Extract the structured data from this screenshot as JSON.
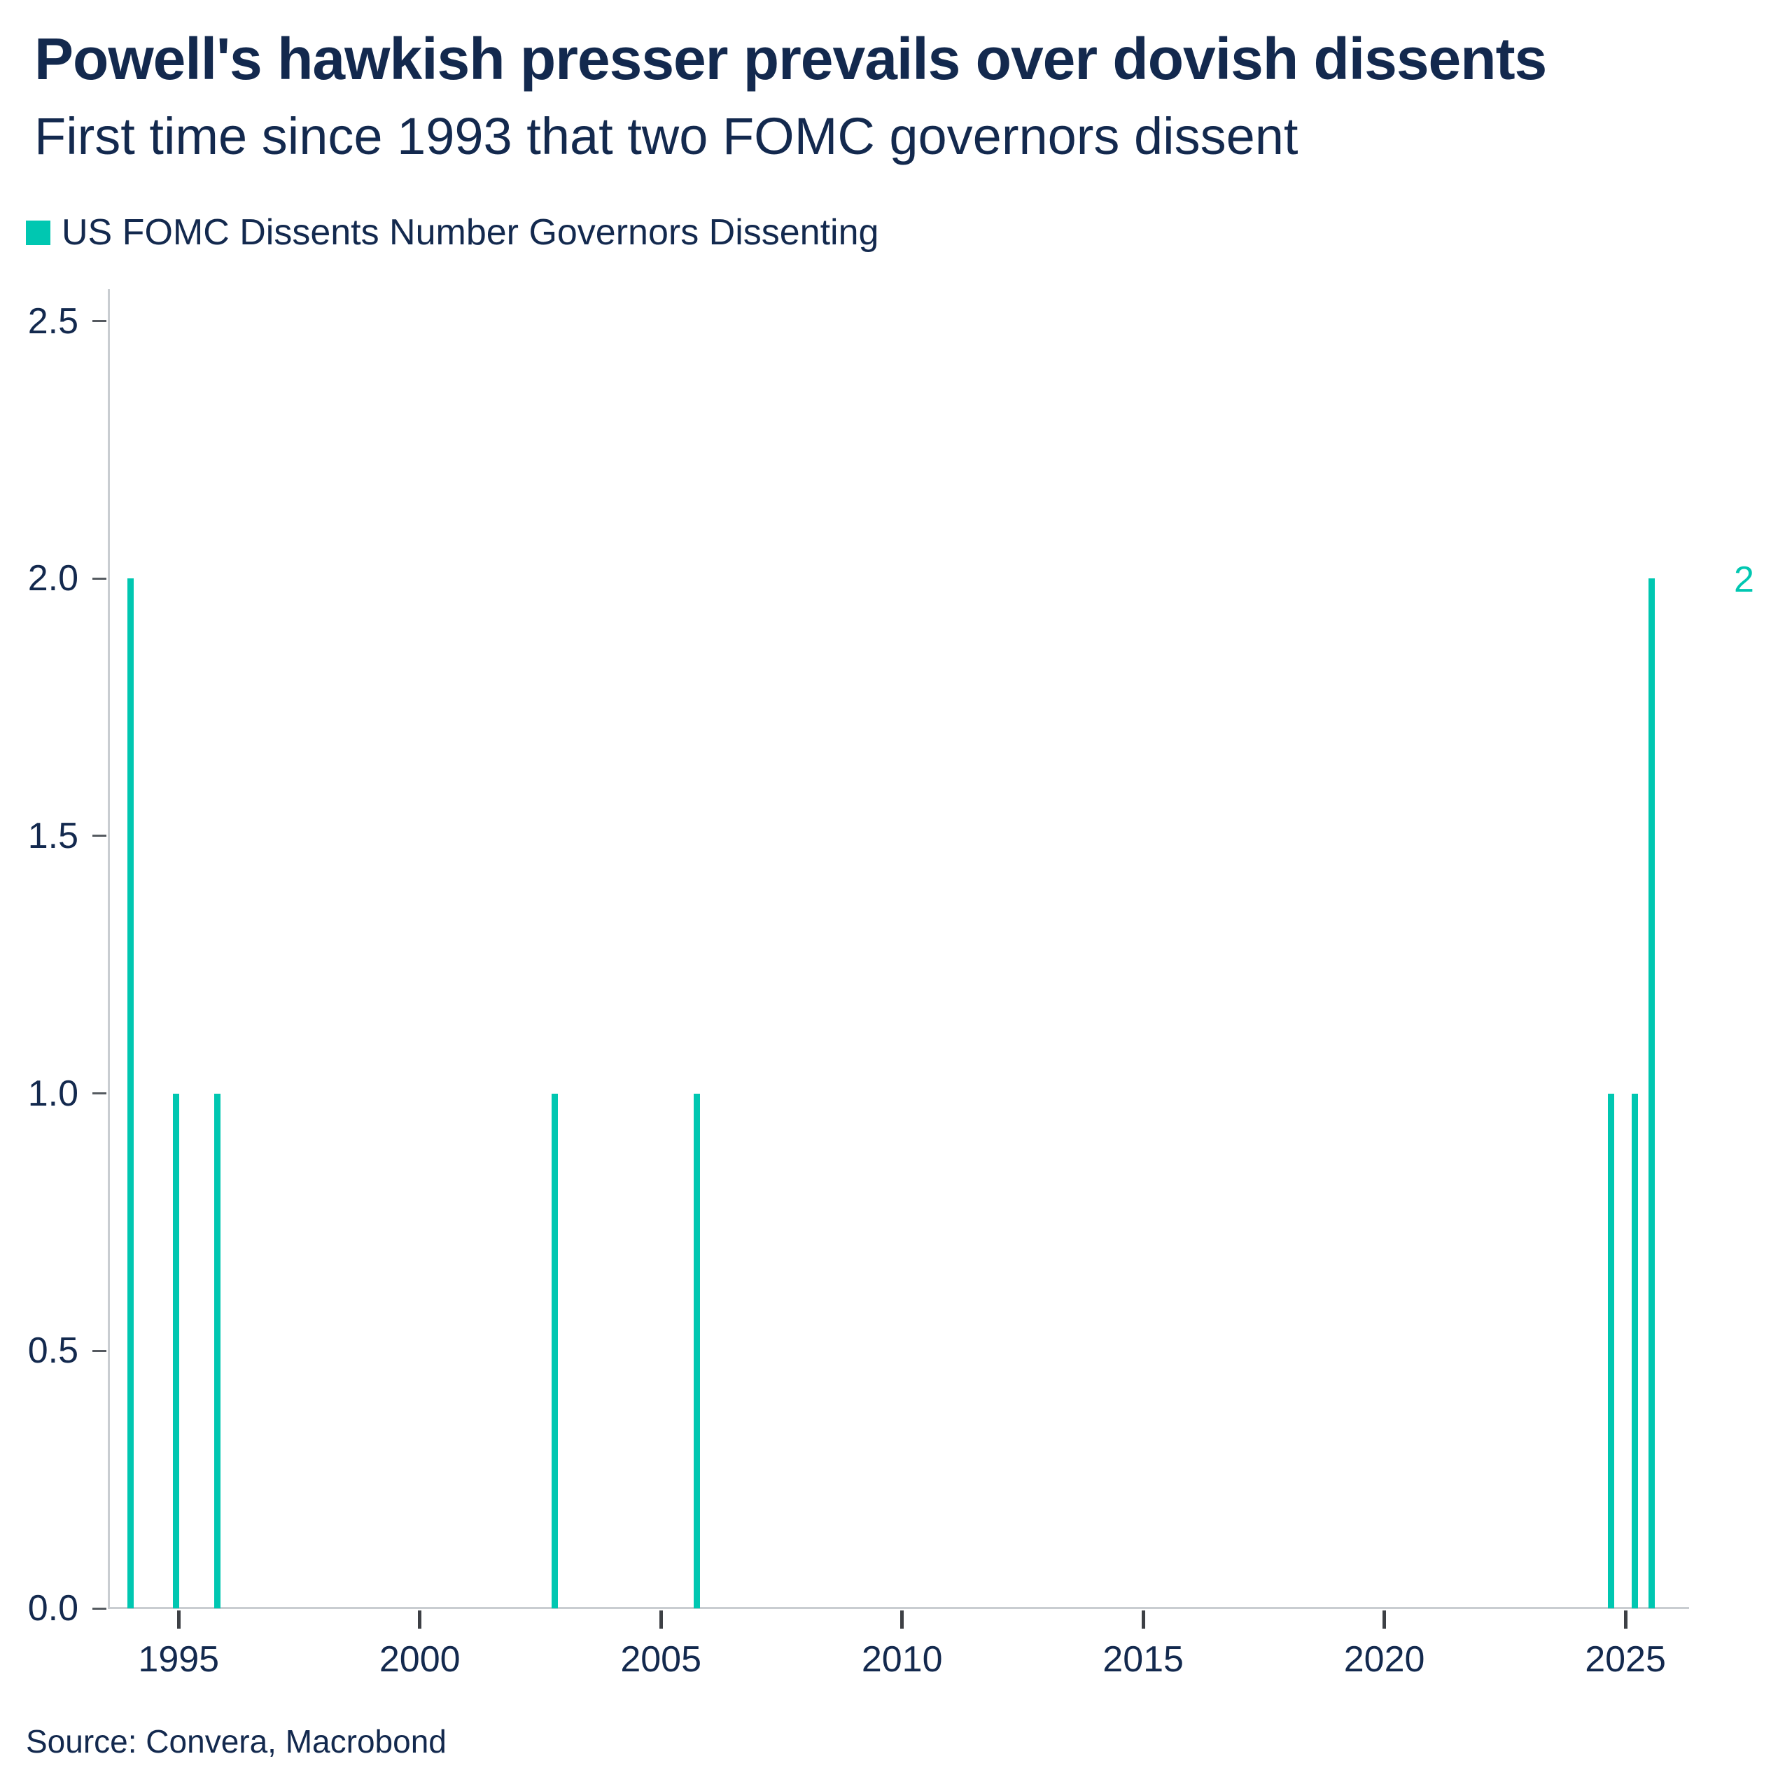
{
  "header": {
    "title": "Powell's hawkish presser prevails over dovish dissents",
    "subtitle": "First time since 1993 that two FOMC governors dissent"
  },
  "legend": {
    "label": "US FOMC Dissents Number Governors Dissenting"
  },
  "colors": {
    "accent_teal": "#00c7b1",
    "text_navy": "#13294e",
    "axis_line": "#c9cdd1",
    "tick_dark": "#3d4045"
  },
  "chart_data": {
    "type": "bar",
    "title": "Powell's hawkish presser prevails over dovish dissents",
    "subtitle": "First time since 1993 that two FOMC governors dissent",
    "xlabel": "",
    "ylabel": "",
    "grid": false,
    "legend_position": "top-left",
    "xlim": [
      1993.53,
      2026.32
    ],
    "ylim": [
      0,
      2.562
    ],
    "x_ticks": [
      1995,
      2000,
      2005,
      2010,
      2015,
      2020,
      2025
    ],
    "x_tick_labels": [
      "1995",
      "2000",
      "2005",
      "2010",
      "2015",
      "2020",
      "2025"
    ],
    "y_ticks": [
      0.0,
      0.5,
      1.0,
      1.5,
      2.0,
      2.5
    ],
    "y_tick_labels": [
      "0.0",
      "0.5",
      "1.0",
      "1.5",
      "2.0",
      "2.5"
    ],
    "series": [
      {
        "name": "US FOMC Dissents Number Governors Dissenting",
        "color": "#00c7b1",
        "points": [
          {
            "x": 1994.0,
            "y": 2
          },
          {
            "x": 1994.95,
            "y": 1
          },
          {
            "x": 1995.8,
            "y": 1
          },
          {
            "x": 2002.8,
            "y": 1
          },
          {
            "x": 2005.75,
            "y": 1
          },
          {
            "x": 2024.7,
            "y": 1
          },
          {
            "x": 2025.2,
            "y": 1
          },
          {
            "x": 2025.55,
            "y": 2
          }
        ]
      }
    ],
    "end_label": {
      "text": "2",
      "value": 2
    }
  },
  "footer": {
    "source": "Source: Convera, Macrobond"
  }
}
